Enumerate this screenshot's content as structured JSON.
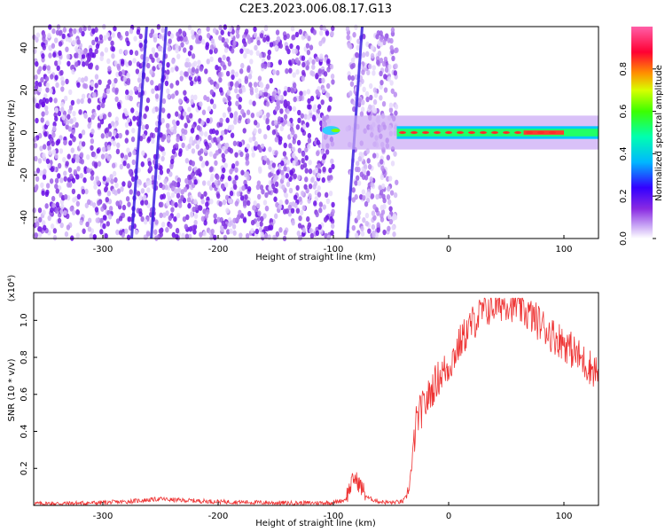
{
  "title": "C2E3.2023.006.08.17.G13",
  "chart_data": [
    {
      "type": "heatmap",
      "xlabel": "Height of straight line (km)",
      "ylabel": "Frequency (Hz)",
      "xlim": [
        -360,
        130
      ],
      "ylim": [
        -50,
        50
      ],
      "xticks": [
        -300,
        -200,
        -100,
        0,
        100
      ],
      "yticks": [
        -40,
        -20,
        0,
        20,
        40
      ],
      "colorbar": {
        "label": "Normalized spectral amplitude",
        "range": [
          0.0,
          1.0
        ],
        "ticks": [
          "0.0",
          "0.2",
          "0.4",
          "0.6",
          "0.8"
        ],
        "colormap": [
          "#ffffff",
          "#c9a7f5",
          "#8a2be2",
          "#3300ff",
          "#00b7ff",
          "#00ff7f",
          "#7fff00",
          "#ffff00",
          "#ff8000",
          "#ff0033",
          "#ff66aa"
        ]
      },
      "features": {
        "noise_region_x": [
          -360,
          -45
        ],
        "gap_x": [
          -100,
          -88
        ],
        "diagonal_streaks": [
          [
            -275,
            -262
          ],
          [
            -258,
            -245
          ],
          [
            -88,
            -75
          ]
        ],
        "carrier_band": {
          "x": [
            -110,
            130
          ],
          "y": 0
        }
      }
    },
    {
      "type": "line",
      "xlabel": "Height of straight line (km)",
      "ylabel": "SNR (10 * v/v)",
      "y_multiplier": "(x10⁴)",
      "xlim": [
        -360,
        130
      ],
      "ylim": [
        0,
        1.15
      ],
      "xticks": [
        -300,
        -200,
        -100,
        0,
        100
      ],
      "yticks": [
        "0.2",
        "0.4",
        "0.6",
        "0.8",
        "1.0"
      ],
      "color": "#ee3333",
      "x": [
        -360,
        -340,
        -320,
        -300,
        -280,
        -260,
        -250,
        -240,
        -220,
        -200,
        -180,
        -160,
        -140,
        -120,
        -100,
        -90,
        -82,
        -78,
        -74,
        -70,
        -60,
        -50,
        -40,
        -36,
        -32,
        -30,
        -28,
        -25,
        -20,
        -15,
        -10,
        -5,
        0,
        10,
        20,
        30,
        40,
        50,
        60,
        70,
        80,
        90,
        100,
        110,
        120,
        130
      ],
      "values": [
        0.01,
        0.01,
        0.012,
        0.015,
        0.02,
        0.03,
        0.035,
        0.03,
        0.025,
        0.02,
        0.018,
        0.015,
        0.013,
        0.013,
        0.015,
        0.03,
        0.15,
        0.12,
        0.08,
        0.04,
        0.02,
        0.015,
        0.02,
        0.05,
        0.2,
        0.35,
        0.45,
        0.5,
        0.55,
        0.62,
        0.68,
        0.72,
        0.75,
        0.88,
        0.98,
        1.05,
        1.08,
        1.1,
        1.08,
        1.03,
        0.98,
        0.92,
        0.88,
        0.82,
        0.76,
        0.72
      ]
    }
  ]
}
